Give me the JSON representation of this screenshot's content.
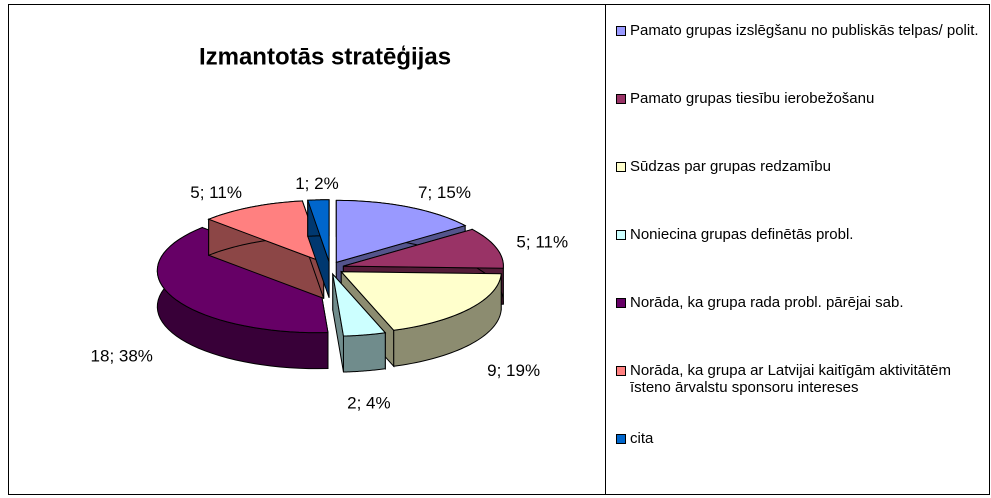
{
  "chart_data": {
    "type": "pie3d",
    "title": "Izmantotās stratēģijas",
    "categories": [
      "Pamato grupas izslēgšanu no publiskās telpas/ polit.",
      "Pamato grupas tiesību ierobežošanu",
      "Sūdzas par grupas redzamību",
      "Noniecina grupas definētās probl.",
      "Norāda, ka grupa rada probl. pārējai sab.",
      "Norāda, ka grupa ar Latvijai kaitīgām aktivitātēm īsteno ārvalstu sponsoru intereses",
      "cita"
    ],
    "values": [
      7,
      5,
      9,
      2,
      18,
      5,
      1
    ],
    "value_labels": [
      "7; 15%",
      "5; 11%",
      "9; 19%",
      "2; 4%",
      "18; 38%",
      "5; 11%",
      "1; 2%"
    ],
    "colors": [
      "#9999ff",
      "#993366",
      "#ffffcc",
      "#ccffff",
      "#660066",
      "#ff8080",
      "#0066cc"
    ],
    "legend": "right"
  }
}
